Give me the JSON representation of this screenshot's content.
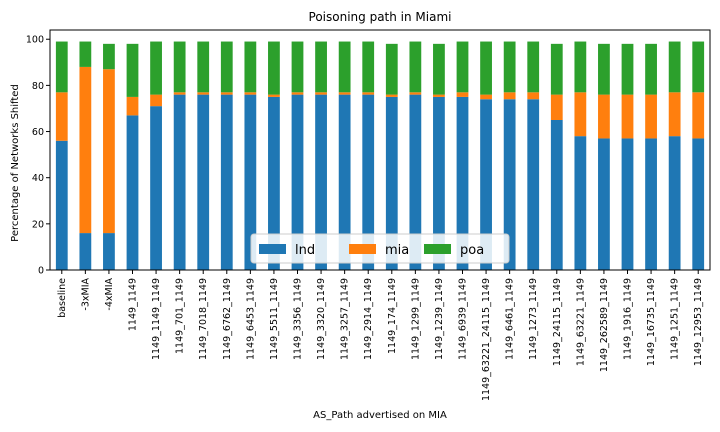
{
  "chart_data": {
    "type": "bar",
    "stacked": true,
    "title": "Poisoning path in Miami",
    "xlabel": "AS_Path advertised on MIA",
    "ylabel": "Percentage of Networks Shifted",
    "ylim": [
      0,
      104
    ],
    "yticks": [
      0,
      20,
      40,
      60,
      80,
      100
    ],
    "grid": false,
    "legend_position": "bottom-center",
    "categories": [
      "baseline",
      "-3xMIA",
      "-4xMIA",
      "1149_1149",
      "1149_1149_1149",
      "1149_701_1149",
      "1149_7018_1149",
      "1149_6762_1149",
      "1149_6453_1149",
      "1149_5511_1149",
      "1149_3356_1149",
      "1149_3320_1149",
      "1149_3257_1149",
      "1149_2914_1149",
      "1149_174_1149",
      "1149_1299_1149",
      "1149_1239_1149",
      "1149_6939_1149",
      "1149_63221_24115_1149",
      "1149_6461_1149",
      "1149_1273_1149",
      "1149_24115_1149",
      "1149_63221_1149",
      "1149_262589_1149",
      "1149_1916_1149",
      "1149_16735_1149",
      "1149_1251_1149",
      "1149_12953_1149"
    ],
    "series": [
      {
        "name": "lnd",
        "color": "#1f77b4",
        "values": [
          56,
          16,
          16,
          67,
          71,
          76,
          76,
          76,
          76,
          75,
          76,
          76,
          76,
          76,
          75,
          76,
          75,
          75,
          74,
          74,
          74,
          65,
          58,
          57,
          57,
          57,
          58,
          57
        ]
      },
      {
        "name": "mia",
        "color": "#ff7f0e",
        "values": [
          21,
          72,
          71,
          8,
          5,
          1,
          1,
          1,
          1,
          1,
          1,
          1,
          1,
          1,
          1,
          1,
          1,
          2,
          2,
          3,
          3,
          11,
          19,
          19,
          19,
          19,
          19,
          20
        ]
      },
      {
        "name": "poa",
        "color": "#2ca02c",
        "values": [
          22,
          11,
          11,
          23,
          23,
          22,
          22,
          22,
          22,
          23,
          22,
          22,
          22,
          22,
          22,
          22,
          22,
          22,
          23,
          22,
          22,
          22,
          22,
          22,
          22,
          22,
          22,
          22
        ]
      }
    ]
  }
}
